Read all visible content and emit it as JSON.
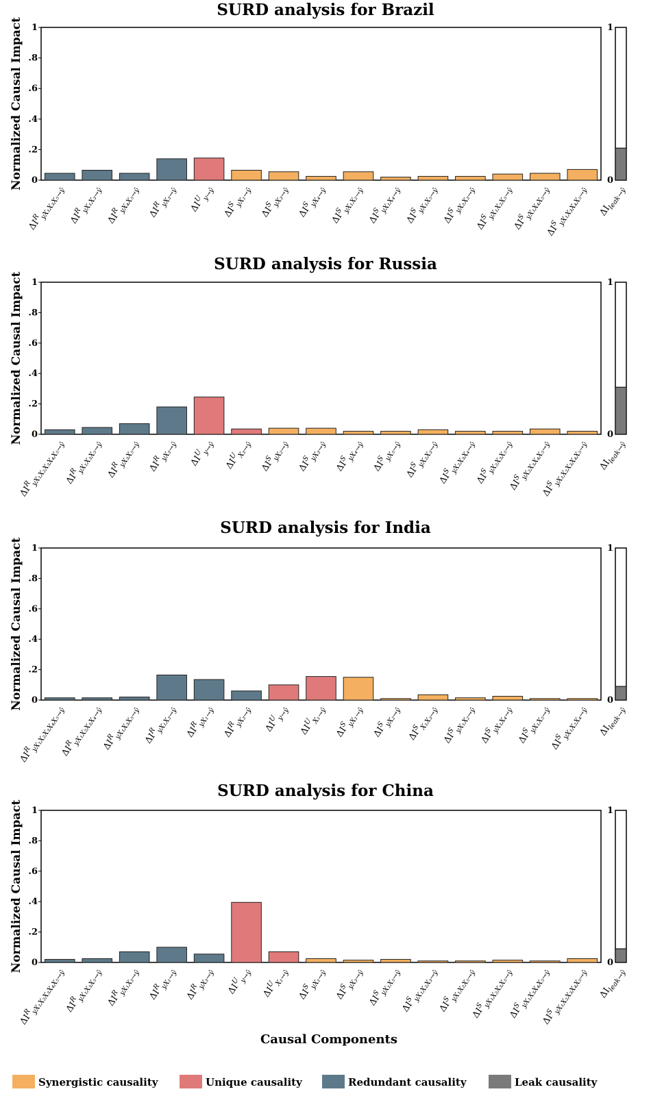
{
  "colors": {
    "synergistic": "#f4b060",
    "unique": "#e07a7a",
    "redundant": "#5e7a8a",
    "leak": "#7a7a7a"
  },
  "x_axis_label": "Causal Components",
  "y_axis_label": "Normalized Causal Impact",
  "legend": [
    {
      "label": "Synergistic causality",
      "color": "#f4b060"
    },
    {
      "label": "Unique causality",
      "color": "#e07a7a"
    },
    {
      "label": "Redundant causality",
      "color": "#5e7a8a"
    },
    {
      "label": "Leak causality",
      "color": "#7a7a7a"
    }
  ],
  "chart_data": [
    {
      "type": "bar",
      "title": "SURD analysis for Brazil",
      "ylabel": "Normalized Causal Impact",
      "ylim": [
        0,
        1
      ],
      "yticks": [
        "0",
        ".2",
        ".4",
        ".6",
        ".8",
        "1"
      ],
      "categories": [
        {
          "sup": "R",
          "sub": "yX₁X₃X₅",
          "kind": "redundant"
        },
        {
          "sup": "R",
          "sub": "yX₁X₃",
          "kind": "redundant"
        },
        {
          "sup": "R",
          "sub": "yX₄X₅",
          "kind": "redundant"
        },
        {
          "sup": "R",
          "sub": "yX₃",
          "kind": "redundant"
        },
        {
          "sup": "U",
          "sub": "y",
          "kind": "unique"
        },
        {
          "sup": "S",
          "sub": "yX₁",
          "kind": "synergistic"
        },
        {
          "sup": "S",
          "sub": "yX₃",
          "kind": "synergistic"
        },
        {
          "sup": "S",
          "sub": "yX₄",
          "kind": "synergistic"
        },
        {
          "sup": "S",
          "sub": "yX₁X₂",
          "kind": "synergistic"
        },
        {
          "sup": "S",
          "sub": "yX₁X₄",
          "kind": "synergistic"
        },
        {
          "sup": "S",
          "sub": "yX₁X₅",
          "kind": "synergistic"
        },
        {
          "sup": "S",
          "sub": "yX₂X₃",
          "kind": "synergistic"
        },
        {
          "sup": "S",
          "sub": "yX₁X₂X₅",
          "kind": "synergistic"
        },
        {
          "sup": "S",
          "sub": "yX₁X₄X₅",
          "kind": "synergistic"
        },
        {
          "sup": "S",
          "sub": "yX₁X₃X₄X₅",
          "kind": "synergistic"
        }
      ],
      "values": [
        0.045,
        0.065,
        0.045,
        0.14,
        0.145,
        0.065,
        0.055,
        0.025,
        0.055,
        0.02,
        0.025,
        0.025,
        0.04,
        0.045,
        0.07
      ],
      "leak": 0.21,
      "leak_label": "leak"
    },
    {
      "type": "bar",
      "title": "SURD analysis for Russia",
      "ylabel": "Normalized Causal Impact",
      "ylim": [
        0,
        1
      ],
      "yticks": [
        "0",
        ".2",
        ".4",
        ".6",
        ".8",
        "1"
      ],
      "categories": [
        {
          "sup": "R",
          "sub": "yX₁X₂X₃X₄X₅",
          "kind": "redundant"
        },
        {
          "sup": "R",
          "sub": "yX₁X₃X₅",
          "kind": "redundant"
        },
        {
          "sup": "R",
          "sub": "yX₃X₅",
          "kind": "redundant"
        },
        {
          "sup": "R",
          "sub": "yX₃",
          "kind": "redundant"
        },
        {
          "sup": "U",
          "sub": "y",
          "kind": "unique"
        },
        {
          "sup": "U",
          "sub": "X₃",
          "kind": "unique"
        },
        {
          "sup": "S",
          "sub": "yX₂",
          "kind": "synergistic"
        },
        {
          "sup": "S",
          "sub": "yX₃",
          "kind": "synergistic"
        },
        {
          "sup": "S",
          "sub": "yX₄",
          "kind": "synergistic"
        },
        {
          "sup": "S",
          "sub": "yX₅",
          "kind": "synergistic"
        },
        {
          "sup": "S",
          "sub": "yX₂X₃",
          "kind": "synergistic"
        },
        {
          "sup": "S",
          "sub": "yX₂X₃X₄",
          "kind": "synergistic"
        },
        {
          "sup": "S",
          "sub": "yX₂X₃X₅",
          "kind": "synergistic"
        },
        {
          "sup": "S",
          "sub": "yX₂X₃X₄X₅",
          "kind": "synergistic"
        },
        {
          "sup": "S",
          "sub": "yX₁X₂X₃X₄X₅",
          "kind": "synergistic"
        }
      ],
      "values": [
        0.03,
        0.045,
        0.07,
        0.18,
        0.245,
        0.035,
        0.04,
        0.04,
        0.02,
        0.02,
        0.03,
        0.02,
        0.02,
        0.035,
        0.02
      ],
      "leak": 0.31,
      "leak_label": "leak"
    },
    {
      "type": "bar",
      "title": "SURD analysis for India",
      "ylabel": "Normalized Causal Impact",
      "ylim": [
        0,
        1
      ],
      "yticks": [
        "0",
        ".2",
        ".4",
        ".6",
        ".8",
        "1"
      ],
      "categories": [
        {
          "sup": "R",
          "sub": "yX₁X₂X₃X₄X₅",
          "kind": "redundant"
        },
        {
          "sup": "R",
          "sub": "yX₁X₂X₃X₄",
          "kind": "redundant"
        },
        {
          "sup": "R",
          "sub": "yX₁X₃X₅",
          "kind": "redundant"
        },
        {
          "sup": "R",
          "sub": "yX₁X₃",
          "kind": "redundant"
        },
        {
          "sup": "R",
          "sub": "yX₁",
          "kind": "redundant"
        },
        {
          "sup": "R",
          "sub": "yX₃",
          "kind": "redundant"
        },
        {
          "sup": "U",
          "sub": "y",
          "kind": "unique"
        },
        {
          "sup": "U",
          "sub": "X₁",
          "kind": "unique"
        },
        {
          "sup": "S",
          "sub": "yX₁",
          "kind": "synergistic"
        },
        {
          "sup": "S",
          "sub": "yX₂",
          "kind": "synergistic"
        },
        {
          "sup": "S",
          "sub": "X₁X₃",
          "kind": "synergistic"
        },
        {
          "sup": "S",
          "sub": "yX₁X₂",
          "kind": "synergistic"
        },
        {
          "sup": "S",
          "sub": "yX₁X₄",
          "kind": "synergistic"
        },
        {
          "sup": "S",
          "sub": "yX₁X₅",
          "kind": "synergistic"
        },
        {
          "sup": "S",
          "sub": "yX₁X₂X₄",
          "kind": "synergistic"
        }
      ],
      "values": [
        0.015,
        0.015,
        0.02,
        0.165,
        0.135,
        0.06,
        0.1,
        0.155,
        0.15,
        0.01,
        0.035,
        0.015,
        0.025,
        0.01,
        0.01
      ],
      "leak": 0.09,
      "leak_label": "leak"
    },
    {
      "type": "bar",
      "title": "SURD analysis for China",
      "ylabel": "Normalized Causal Impact",
      "ylim": [
        0,
        1
      ],
      "yticks": [
        "0",
        ".2",
        ".4",
        ".6",
        ".8",
        "1"
      ],
      "categories": [
        {
          "sup": "R",
          "sub": "yX₁X₂X₃X₄X₅",
          "kind": "redundant"
        },
        {
          "sup": "R",
          "sub": "yX₁X₃X₅",
          "kind": "redundant"
        },
        {
          "sup": "R",
          "sub": "yX₁X₃",
          "kind": "redundant"
        },
        {
          "sup": "R",
          "sub": "yX₁",
          "kind": "redundant"
        },
        {
          "sup": "R",
          "sub": "yX₃",
          "kind": "redundant"
        },
        {
          "sup": "U",
          "sub": "y",
          "kind": "unique"
        },
        {
          "sup": "U",
          "sub": "X₁",
          "kind": "unique"
        },
        {
          "sup": "S",
          "sub": "yX₁",
          "kind": "synergistic"
        },
        {
          "sup": "S",
          "sub": "yX₃",
          "kind": "synergistic"
        },
        {
          "sup": "S",
          "sub": "yX₁X₅",
          "kind": "synergistic"
        },
        {
          "sup": "S",
          "sub": "yX₁X₂X₃",
          "kind": "synergistic"
        },
        {
          "sup": "S",
          "sub": "yX₁X₂X₅",
          "kind": "synergistic"
        },
        {
          "sup": "S",
          "sub": "yX₁X₂X₃X₅",
          "kind": "synergistic"
        },
        {
          "sup": "S",
          "sub": "yX₁X₃X₄X₅",
          "kind": "synergistic"
        },
        {
          "sup": "S",
          "sub": "yX₁X₂X₃X₄X₅",
          "kind": "synergistic"
        }
      ],
      "values": [
        0.02,
        0.025,
        0.07,
        0.1,
        0.055,
        0.395,
        0.07,
        0.025,
        0.015,
        0.02,
        0.01,
        0.01,
        0.015,
        0.01,
        0.025
      ],
      "leak": 0.09,
      "leak_label": "leak"
    }
  ]
}
